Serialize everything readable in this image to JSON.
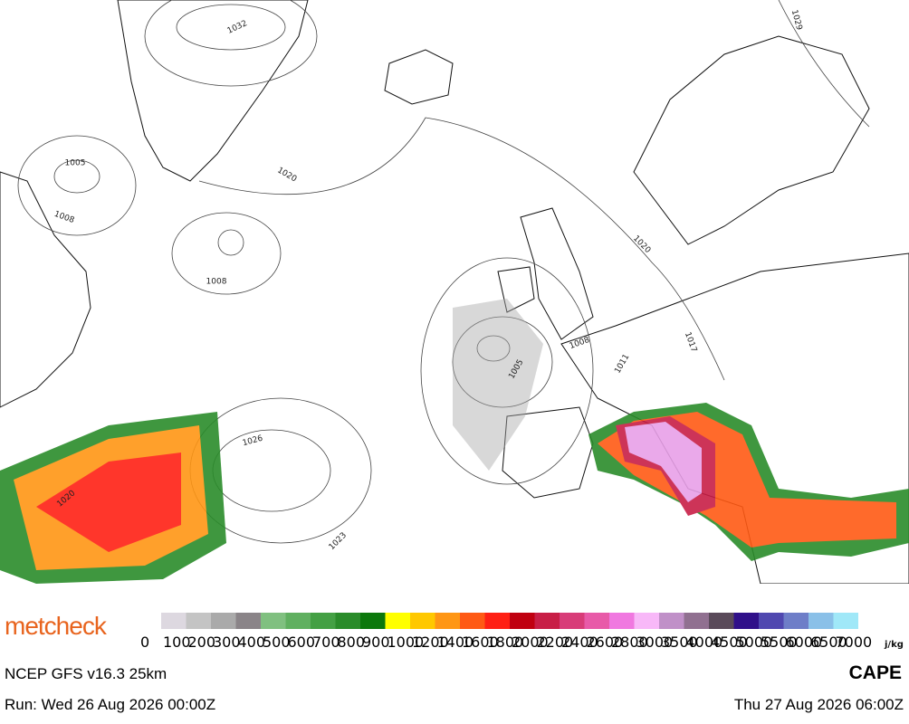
{
  "logo": "metcheck",
  "map": {
    "isobar_labels": [
      "1032",
      "1005",
      "1008",
      "1020",
      "1008",
      "1026",
      "1020",
      "1023",
      "1005",
      "1008",
      "1011",
      "1017",
      "1020",
      "1029"
    ]
  },
  "legend": {
    "ticks": [
      0,
      100,
      200,
      300,
      400,
      500,
      600,
      700,
      800,
      900,
      1000,
      1200,
      1400,
      1600,
      1800,
      2000,
      2200,
      2400,
      2600,
      2800,
      3000,
      3500,
      4000,
      4500,
      5000,
      5500,
      6000,
      6500,
      7000
    ],
    "colors": [
      "#ddd8e0",
      "#c4c4c4",
      "#aaaaaa",
      "#8a8488",
      "#80c080",
      "#60b060",
      "#44a044",
      "#2a8c2a",
      "#0c780c",
      "#ffff00",
      "#ffc800",
      "#ff9614",
      "#ff5a14",
      "#ff2014",
      "#c00010",
      "#c81e46",
      "#d83c78",
      "#e85aa8",
      "#f078e0",
      "#f8b8f8",
      "#c090c8",
      "#907090",
      "#5a4a5a",
      "#30108a",
      "#5048b0",
      "#6e7ec8",
      "#8ac0e8",
      "#a0e8f8"
    ],
    "unit": "j/kg"
  },
  "footer": {
    "model": "NCEP GFS v16.3 25km",
    "field": "CAPE",
    "run": "Run: Wed 26 Aug 2026 00:00Z",
    "valid": "Thu 27 Aug 2026 06:00Z"
  }
}
